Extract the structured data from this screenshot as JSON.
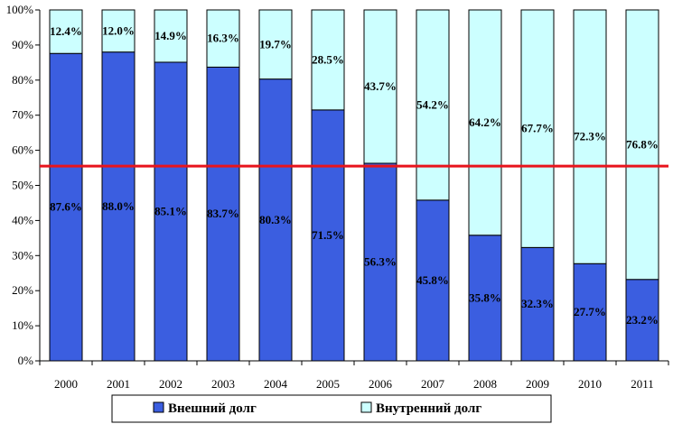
{
  "chart_data": {
    "type": "bar",
    "stacked": true,
    "percent": true,
    "categories": [
      "2000",
      "2001",
      "2002",
      "2003",
      "2004",
      "2005",
      "2006",
      "2007",
      "2008",
      "2009",
      "2010",
      "2011"
    ],
    "series": [
      {
        "name": "Внешний долг",
        "values": [
          87.6,
          88.0,
          85.1,
          83.7,
          80.3,
          71.5,
          56.3,
          45.8,
          35.8,
          32.3,
          27.7,
          23.2
        ],
        "color": "#3b5ee0"
      },
      {
        "name": "Внутренний долг",
        "values": [
          12.4,
          12.0,
          14.9,
          16.3,
          19.7,
          28.5,
          43.7,
          54.2,
          64.2,
          67.7,
          72.3,
          76.8
        ],
        "color": "#ccffff"
      }
    ],
    "data_labels": {
      "bottom": [
        "87.6%",
        "88.0%",
        "85.1%",
        "83.7%",
        "80.3%",
        "71.5%",
        "56.3%",
        "45.8%",
        "35.8%",
        "32.3%",
        "27.7%",
        "23.2%"
      ],
      "top": [
        "12.4%",
        "12.0%",
        "14.9%",
        "16.3%",
        "19.7%",
        "28.5%",
        "43.7%",
        "54.2%",
        "64.2%",
        "67.7%",
        "72.3%",
        "76.8%"
      ]
    },
    "yticks": [
      "0%",
      "10%",
      "20%",
      "30%",
      "40%",
      "50%",
      "60%",
      "70%",
      "80%",
      "90%",
      "100%"
    ],
    "ylim": [
      0,
      100
    ],
    "reference_line": {
      "value": 55.5,
      "color": "#e8141c"
    },
    "grid": false,
    "legend": "bottom"
  }
}
